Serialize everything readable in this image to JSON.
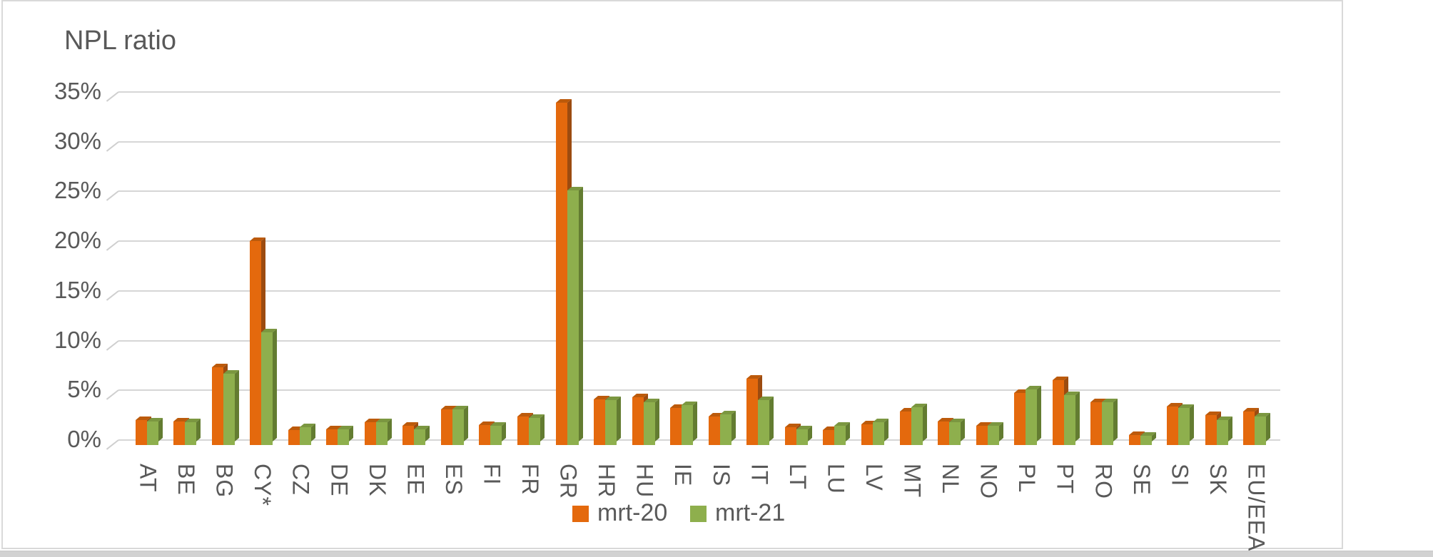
{
  "title": "NPL ratio",
  "legend": [
    {
      "label": "mrt-20",
      "color": "#E4690D"
    },
    {
      "label": "mrt-21",
      "color": "#8EAF4D"
    }
  ],
  "colors": {
    "orange_front": "#E4690D",
    "orange_side": "#9C4B10",
    "orange_top": "#BC5A0B",
    "green_front": "#8EAF4D",
    "green_side": "#637C31",
    "green_top": "#7B9740",
    "gridline": "#D6D6D6",
    "text": "#595959",
    "frame_border": "#D9D9D9",
    "bottom_band": "#D2D2D2"
  },
  "chart_data": {
    "type": "bar",
    "style": "3d-clustered-column",
    "title": "NPL ratio",
    "categories": [
      "AT",
      "BE",
      "BG",
      "CY*",
      "CZ",
      "DE",
      "DK",
      "EE",
      "ES",
      "FI",
      "FR",
      "GR",
      "HR",
      "HU",
      "IE",
      "IS",
      "IT",
      "LT",
      "LU",
      "LV",
      "MT",
      "NL",
      "NO",
      "PL",
      "PT",
      "RO",
      "SE",
      "SI",
      "SK",
      "EU/EEA"
    ],
    "series": [
      {
        "name": "mrt-20",
        "color": "#E4690D",
        "values": [
          2.0,
          1.9,
          7.3,
          20.0,
          1.0,
          1.1,
          1.8,
          1.4,
          3.1,
          1.5,
          2.4,
          33.9,
          4.1,
          4.3,
          3.2,
          2.4,
          6.2,
          1.3,
          1.0,
          1.6,
          2.9,
          1.9,
          1.4,
          4.7,
          6.0,
          3.8,
          0.5,
          3.4,
          2.5,
          2.9
        ]
      },
      {
        "name": "mrt-21",
        "color": "#8EAF4D",
        "values": [
          1.9,
          1.8,
          6.7,
          10.8,
          1.3,
          1.1,
          1.8,
          1.1,
          3.1,
          1.4,
          2.2,
          25.1,
          4.0,
          3.8,
          3.5,
          2.6,
          4.0,
          1.1,
          1.4,
          1.8,
          3.3,
          1.8,
          1.4,
          5.1,
          4.5,
          3.8,
          0.4,
          3.2,
          2.0,
          2.4
        ]
      }
    ],
    "unit": "%",
    "ylim": [
      0,
      35
    ],
    "y_tick_step": 5,
    "y_ticks": [
      "0%",
      "5%",
      "10%",
      "15%",
      "20%",
      "25%",
      "30%",
      "35%"
    ],
    "grid": true,
    "legend_position": "bottom-center"
  }
}
